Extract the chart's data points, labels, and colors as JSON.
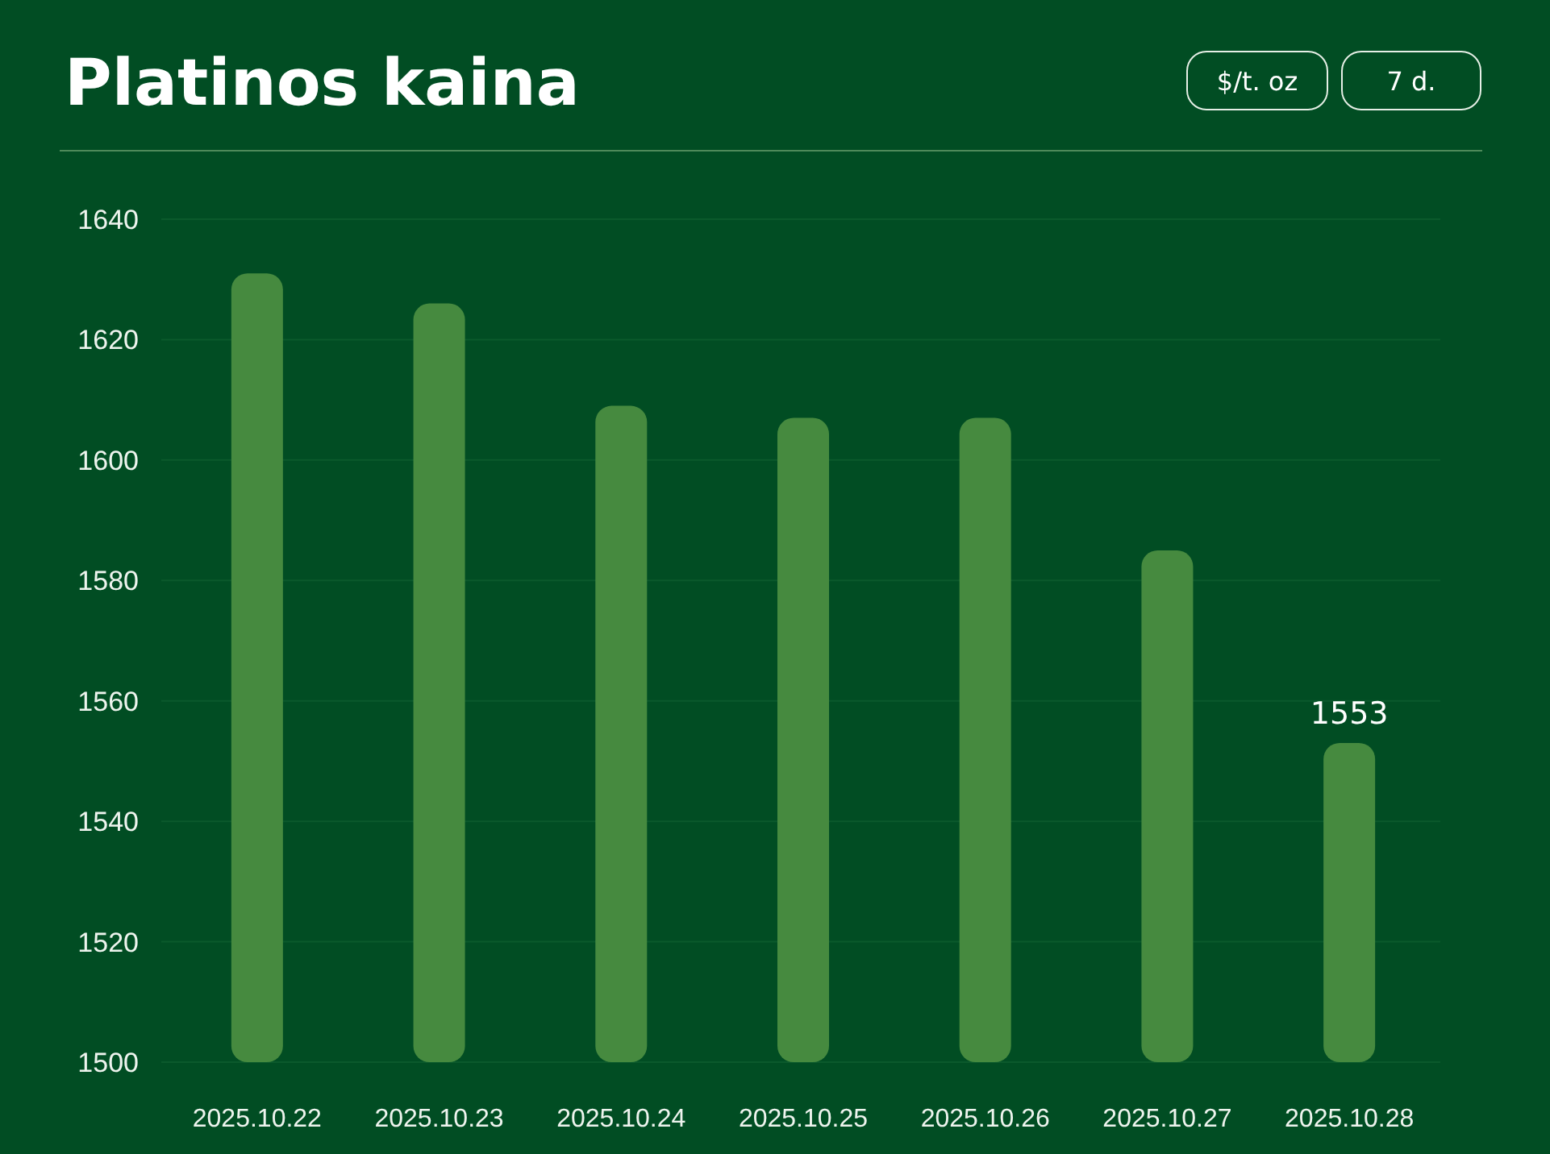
{
  "chart_data": {
    "type": "bar",
    "title": "Platinos kaina",
    "categories": [
      "2025.10.22",
      "2025.10.23",
      "2025.10.24",
      "2025.10.25",
      "2025.10.26",
      "2025.10.27",
      "2025.10.28"
    ],
    "values": [
      1631,
      1626,
      1609,
      1607,
      1607,
      1585,
      1553
    ],
    "color": "#468a3f",
    "ylim": [
      1500,
      1640
    ],
    "yticks": [
      1500,
      1520,
      1540,
      1560,
      1580,
      1600,
      1620,
      1640
    ],
    "grid": "y",
    "value_labels": [
      null,
      null,
      null,
      null,
      null,
      null,
      "1553"
    ],
    "annotations": [
      "$/t. oz",
      "7 d."
    ]
  }
}
